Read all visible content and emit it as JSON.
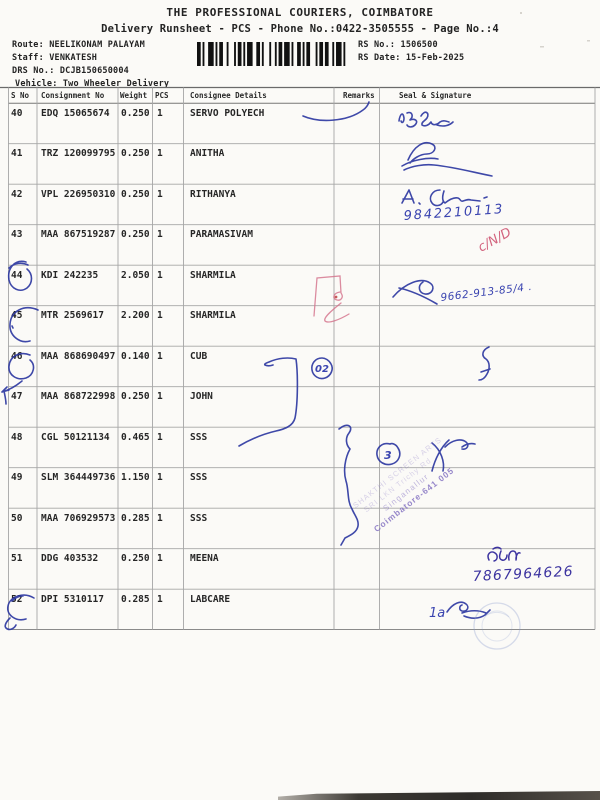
{
  "header": {
    "title": "THE PROFESSIONAL COURIERS, COIMBATORE",
    "subtitle": "Delivery Runsheet - PCS - Phone No.:0422-3505555 - Page No.:4"
  },
  "meta": {
    "route": "Route: NEELIKONAM PALAYAM",
    "staff": "Staff: VENKATESH",
    "drs_no": "DRS No.: DCJB150650004",
    "vehicle": "Vehicle: Two Wheeler Delivery",
    "rs_no": "RS No.: 1506500",
    "rs_date": "RS Date: 15-Feb-2025"
  },
  "table": {
    "columns": {
      "sno": "S No",
      "consignment": "Consignment No",
      "weight": "Weight",
      "pcs": "PCS",
      "consignee": "Consignee Details",
      "remarks": "Remarks",
      "seal": "Seal & Signature"
    },
    "rows": [
      {
        "s_no": "40",
        "consignment": "EDQ 15065674",
        "weight": "0.250",
        "pcs": "1",
        "consignee": "SERVO POLYECH"
      },
      {
        "s_no": "41",
        "consignment": "TRZ 120099795",
        "weight": "0.250",
        "pcs": "1",
        "consignee": "ANITHA"
      },
      {
        "s_no": "42",
        "consignment": "VPL 226950310",
        "weight": "0.250",
        "pcs": "1",
        "consignee": "RITHANYA"
      },
      {
        "s_no": "43",
        "consignment": "MAA 867519287",
        "weight": "0.250",
        "pcs": "1",
        "consignee": "PARAMASIVAM"
      },
      {
        "s_no": "44",
        "consignment": "KDI 242235",
        "weight": "2.050",
        "pcs": "1",
        "consignee": "SHARMILA"
      },
      {
        "s_no": "45",
        "consignment": "MTR 2569617",
        "weight": "2.200",
        "pcs": "1",
        "consignee": "SHARMILA"
      },
      {
        "s_no": "46",
        "consignment": "MAA 868690497",
        "weight": "0.140",
        "pcs": "1",
        "consignee": "CUB"
      },
      {
        "s_no": "47",
        "consignment": "MAA 868722998",
        "weight": "0.250",
        "pcs": "1",
        "consignee": "JOHN"
      },
      {
        "s_no": "48",
        "consignment": "CGL 50121134",
        "weight": "0.465",
        "pcs": "1",
        "consignee": "SSS"
      },
      {
        "s_no": "49",
        "consignment": "SLM 364449736",
        "weight": "1.150",
        "pcs": "1",
        "consignee": "SSS"
      },
      {
        "s_no": "50",
        "consignment": "MAA 706929573",
        "weight": "0.285",
        "pcs": "1",
        "consignee": "SSS"
      },
      {
        "s_no": "51",
        "consignment": "DDG 403532",
        "weight": "0.250",
        "pcs": "1",
        "consignee": "MEENA"
      },
      {
        "s_no": "52",
        "consignment": "DPI 5310117",
        "weight": "0.285",
        "pcs": "1",
        "consignee": "LABCARE"
      }
    ]
  },
  "handwriting": {
    "phone_row42": "9842210113",
    "note_row44": "9662-913-85/4 .",
    "red_note_row43": "c/N/D",
    "circled_row46": "02",
    "circled_row48": "3",
    "tamil_row51": "மீனா",
    "phone_row51": "7867964626",
    "note_row52": "1a",
    "stamp_lines": {
      "l1": "SHAKTHI SCREEN ARTS",
      "l2": "SRI LKN Trichy Rd",
      "l3": "Singanallur",
      "l4": "Coimbatore-641 005"
    }
  }
}
